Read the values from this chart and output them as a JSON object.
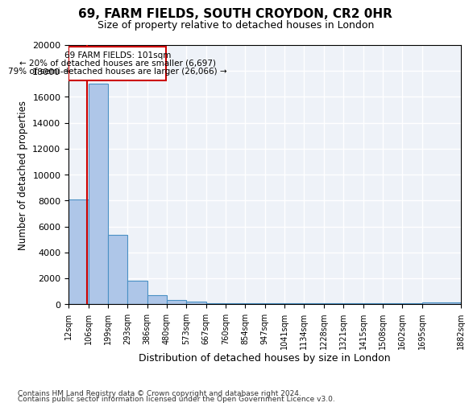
{
  "title": "69, FARM FIELDS, SOUTH CROYDON, CR2 0HR",
  "subtitle": "Size of property relative to detached houses in London",
  "xlabel": "Distribution of detached houses by size in London",
  "ylabel": "Number of detached properties",
  "annotation_line1": "69 FARM FIELDS: 101sqm",
  "annotation_line2": "← 20% of detached houses are smaller (6,697)",
  "annotation_line3": "79% of semi-detached houses are larger (26,066) →",
  "footer_line1": "Contains HM Land Registry data © Crown copyright and database right 2024.",
  "footer_line2": "Contains public sector information licensed under the Open Government Licence v3.0.",
  "bar_values": [
    8100,
    17000,
    5350,
    1800,
    700,
    350,
    200,
    100,
    100,
    100,
    100,
    100,
    100,
    100,
    100,
    100,
    100,
    100,
    150
  ],
  "bin_edges": [
    12,
    106,
    199,
    293,
    386,
    480,
    573,
    667,
    760,
    854,
    947,
    1041,
    1134,
    1228,
    1321,
    1415,
    1508,
    1602,
    1695,
    1882
  ],
  "tick_labels": [
    "12sqm",
    "106sqm",
    "199sqm",
    "293sqm",
    "386sqm",
    "480sqm",
    "573sqm",
    "667sqm",
    "760sqm",
    "854sqm",
    "947sqm",
    "1041sqm",
    "1134sqm",
    "1228sqm",
    "1321sqm",
    "1415sqm",
    "1508sqm",
    "1602sqm",
    "1695sqm",
    "1882sqm"
  ],
  "property_size": 101,
  "bar_color": "#aec6e8",
  "bar_edge_color": "#4a90c4",
  "vline_color": "#cc0000",
  "annotation_box_color": "#cc0000",
  "background_color": "#eef2f8",
  "ylim": [
    0,
    20000
  ],
  "yticks": [
    0,
    2000,
    4000,
    6000,
    8000,
    10000,
    12000,
    14000,
    16000,
    18000,
    20000
  ]
}
